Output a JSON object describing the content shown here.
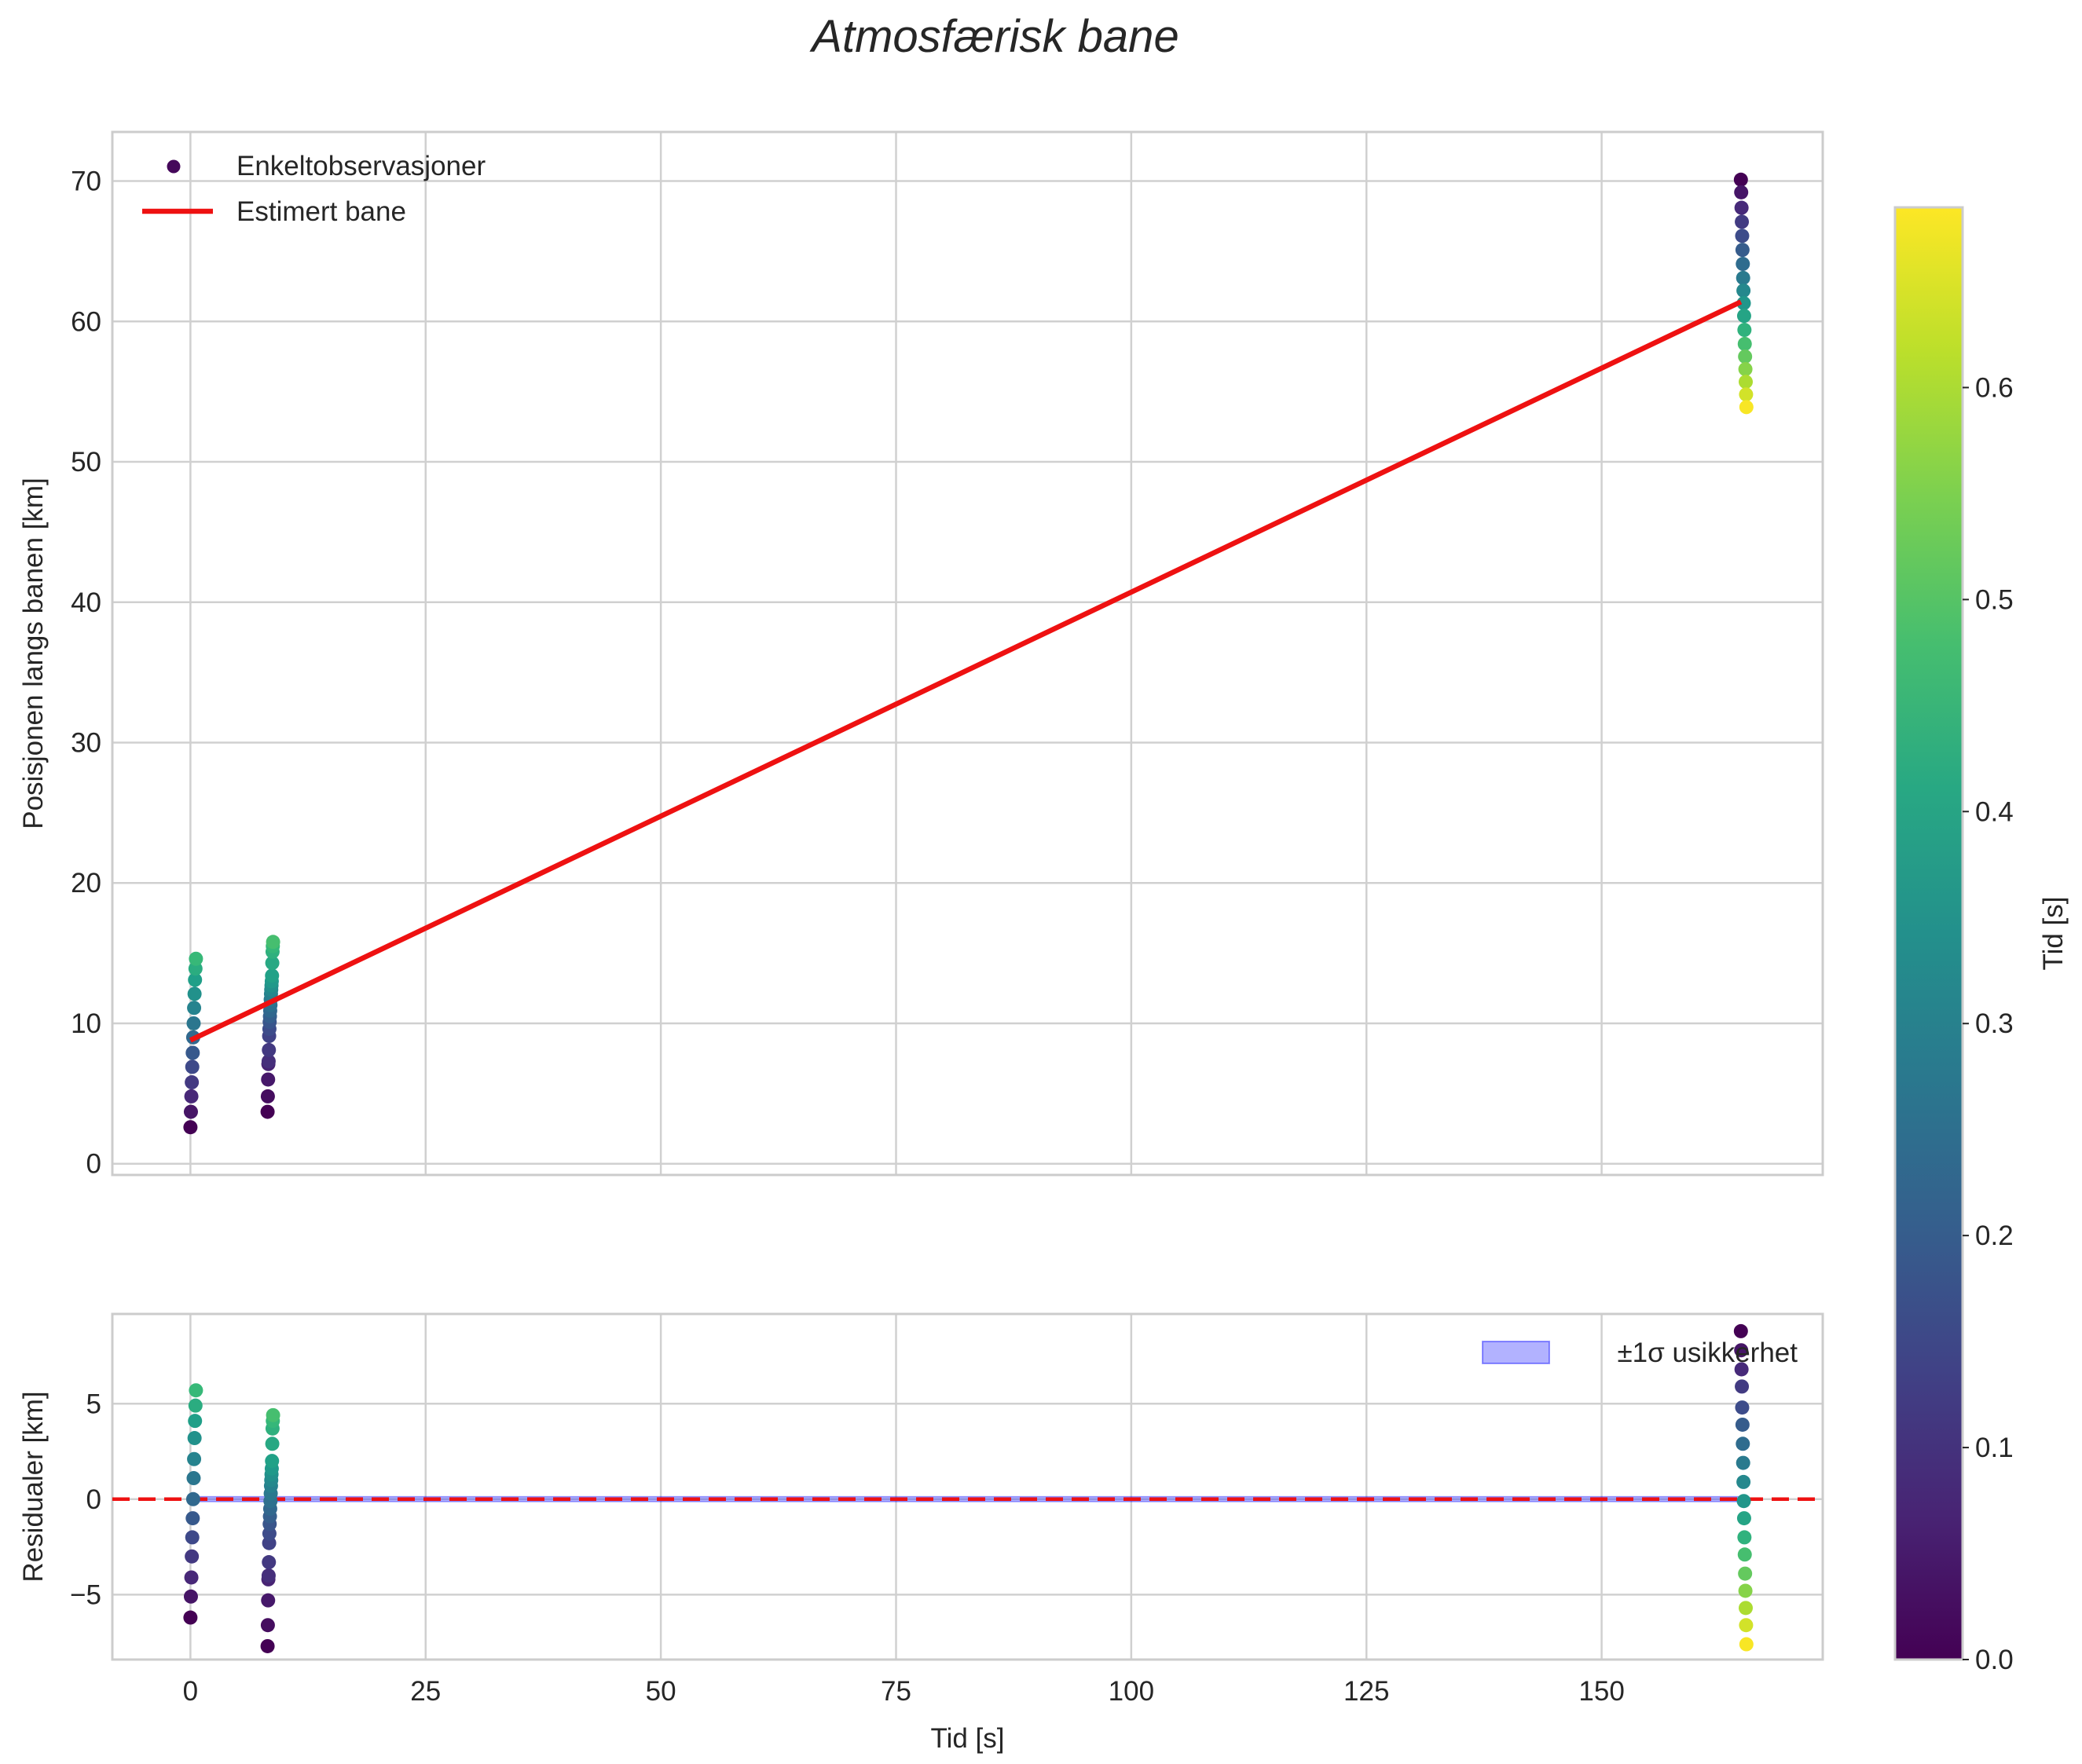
{
  "chart_data": [
    {
      "type": "scatter",
      "title": "Atmosfærisk bane",
      "xlabel": "",
      "ylabel": "Posisjonen langs banen [km]",
      "xlim": [
        -8.3,
        173.5
      ],
      "ylim": [
        -0.8,
        73.5
      ],
      "xticks": [
        0,
        25,
        50,
        75,
        100,
        125,
        150
      ],
      "yticks": [
        0,
        10,
        20,
        30,
        40,
        50,
        60,
        70
      ],
      "grid": true,
      "legend": {
        "location": "upper-left",
        "entries": [
          "Enkeltobservasjoner",
          "Estimert bane"
        ]
      },
      "series": [
        {
          "name": "Enkeltobservasjoner",
          "kind": "scatter",
          "colorby": "time",
          "groups": [
            {
              "x": 0.0,
              "t0": 0.0,
              "t1": 0.46,
              "y": [
                2.6,
                3.7,
                4.8,
                5.8,
                6.9,
                7.9,
                9.0,
                10.0,
                11.1,
                12.1,
                13.1,
                13.9,
                14.6
              ]
            },
            {
              "x": 8.2,
              "t0": 0.0,
              "t1": 0.48,
              "y": [
                3.7,
                4.8,
                6.0,
                7.1,
                7.3,
                8.1,
                9.1,
                9.6,
                10.1,
                10.5,
                10.9,
                11.3,
                11.7,
                12.1,
                12.4,
                12.7,
                13.0,
                13.4,
                14.3,
                15.1,
                15.5,
                15.8
              ]
            },
            {
              "x": 164.8,
              "t0": 0.0,
              "t1": 0.68,
              "y": [
                70.1,
                69.2,
                68.1,
                67.1,
                66.1,
                65.1,
                64.1,
                63.1,
                62.2,
                61.3,
                60.4,
                59.4,
                58.4,
                57.5,
                56.6,
                55.7,
                54.8,
                53.9
              ]
            }
          ]
        },
        {
          "name": "Estimert bane",
          "kind": "line",
          "color": "#ee1111",
          "x": [
            0.0,
            164.8
          ],
          "y": [
            8.8,
            61.4
          ]
        }
      ]
    },
    {
      "type": "scatter",
      "title": "",
      "xlabel": "Tid [s]",
      "ylabel": "Residualer [km]",
      "xlim": [
        -8.3,
        173.5
      ],
      "ylim": [
        -8.4,
        9.7
      ],
      "xticks": [
        0,
        25,
        50,
        75,
        100,
        125,
        150
      ],
      "yticks": [
        -5,
        0,
        5
      ],
      "grid": true,
      "legend": {
        "location": "upper-right",
        "entries": [
          "±1σ usikkerhet"
        ]
      },
      "reference_line": {
        "y": 0,
        "style": "dashed",
        "color": "#ee1111"
      },
      "band": {
        "name": "±1σ usikkerhet",
        "x": [
          0.0,
          164.8
        ],
        "y_low": -0.05,
        "y_high": 0.05,
        "color": "#0000ff"
      },
      "series": [
        {
          "name": "Residualer",
          "kind": "scatter",
          "colorby": "time",
          "groups": [
            {
              "x": 0.0,
              "t0": 0.0,
              "t1": 0.46,
              "y": [
                -6.2,
                -5.1,
                -4.1,
                -3.0,
                -2.0,
                -1.0,
                0.0,
                1.1,
                2.1,
                3.2,
                4.1,
                4.9,
                5.7
              ]
            },
            {
              "x": 8.2,
              "t0": 0.0,
              "t1": 0.48,
              "y": [
                -7.7,
                -6.6,
                -5.3,
                -4.2,
                -4.0,
                -3.3,
                -2.3,
                -1.8,
                -1.3,
                -0.9,
                -0.5,
                -0.1,
                0.3,
                0.7,
                1.0,
                1.3,
                1.6,
                2.0,
                2.9,
                3.7,
                4.1,
                4.4
              ]
            },
            {
              "x": 164.8,
              "t0": 0.0,
              "t1": 0.68,
              "y": [
                8.8,
                7.8,
                6.8,
                5.9,
                4.8,
                3.9,
                2.9,
                1.9,
                0.9,
                -0.1,
                -1.0,
                -2.0,
                -2.9,
                -3.9,
                -4.8,
                -5.7,
                -6.6,
                -7.6
              ]
            }
          ]
        }
      ]
    }
  ],
  "colorbar": {
    "label": "Tid [s]",
    "range": [
      0.0,
      0.685
    ],
    "ticks": [
      0.0,
      0.1,
      0.2,
      0.3,
      0.4,
      0.5,
      0.6
    ],
    "tick_labels": [
      "0.0",
      "0.1",
      "0.2",
      "0.3",
      "0.4",
      "0.5",
      "0.6"
    ],
    "colormap": "viridis"
  }
}
